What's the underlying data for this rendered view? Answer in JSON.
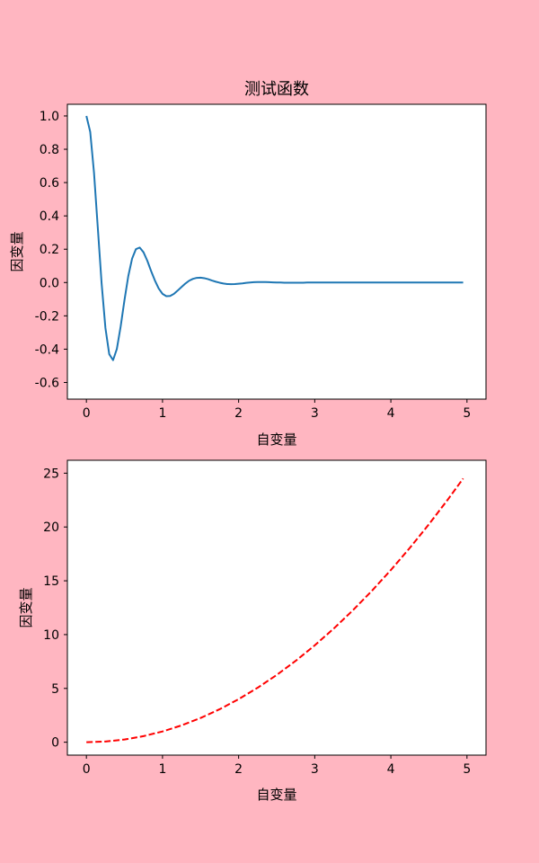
{
  "figure": {
    "background": "#ffb6c1"
  },
  "chart_data": [
    {
      "type": "line",
      "title": "测试函数",
      "xlabel": "自变量",
      "ylabel": "因变量",
      "xlim": [
        -0.25,
        5.25
      ],
      "ylim": [
        -0.7,
        1.07
      ],
      "xticks": [
        0,
        1,
        2,
        3,
        4,
        5
      ],
      "xtick_labels": [
        "0",
        "1",
        "2",
        "3",
        "4",
        "5"
      ],
      "yticks": [
        -0.6,
        -0.4,
        -0.2,
        0.0,
        0.2,
        0.4,
        0.6,
        0.8,
        1.0
      ],
      "ytick_labels": [
        "-0.6",
        "-0.4",
        "-0.2",
        "0.0",
        "0.2",
        "0.4",
        "0.6",
        "0.8",
        "1.0"
      ],
      "grid": false,
      "series": [
        {
          "color": "#1f77b4",
          "line_style": "solid",
          "x": [
            0.0,
            0.05,
            0.1,
            0.15,
            0.2,
            0.25,
            0.3,
            0.35,
            0.4,
            0.45,
            0.5,
            0.55,
            0.6,
            0.65,
            0.7,
            0.75,
            0.8,
            0.85,
            0.9,
            0.95,
            1.0,
            1.05,
            1.1,
            1.15,
            1.2,
            1.25,
            1.3,
            1.35,
            1.4,
            1.45,
            1.5,
            1.55,
            1.6,
            1.65,
            1.7,
            1.75,
            1.8,
            1.85,
            1.9,
            1.95,
            2.0,
            2.05,
            2.1,
            2.15,
            2.2,
            2.25,
            2.3,
            2.35,
            2.4,
            2.45,
            2.5,
            2.55,
            2.6,
            2.65,
            2.7,
            2.75,
            2.8,
            2.85,
            2.9,
            2.95,
            3.0,
            3.05,
            3.1,
            3.15,
            3.2,
            3.25,
            3.3,
            3.35,
            3.4,
            3.45,
            3.5,
            3.55,
            3.6,
            3.65,
            3.7,
            3.75,
            3.8,
            3.85,
            3.9,
            3.95,
            4.0,
            4.05,
            4.1,
            4.15,
            4.2,
            4.25,
            4.3,
            4.35,
            4.4,
            4.45,
            4.5,
            4.55,
            4.6,
            4.65,
            4.7,
            4.75,
            4.8,
            4.85,
            4.9,
            4.95
          ],
          "y": [
            1.0,
            0.905,
            0.659,
            0.327,
            -0.006,
            -0.273,
            -0.43,
            -0.466,
            -0.399,
            -0.264,
            -0.106,
            0.038,
            0.143,
            0.2,
            0.21,
            0.182,
            0.131,
            0.069,
            0.012,
            -0.036,
            -0.068,
            -0.082,
            -0.081,
            -0.068,
            -0.048,
            -0.027,
            -0.006,
            0.011,
            0.022,
            0.028,
            0.029,
            0.026,
            0.02,
            0.012,
            0.005,
            -0.001,
            -0.006,
            -0.009,
            -0.01,
            -0.009,
            -0.007,
            -0.005,
            -0.002,
            0.0,
            0.002,
            0.003,
            0.003,
            0.003,
            0.002,
            0.001,
            0.0,
            0.0,
            -0.001,
            -0.001,
            -0.001,
            -0.001,
            -0.001,
            -0.001,
            0.0,
            0.0,
            0.0,
            0.0,
            0.0,
            0.0,
            0.0,
            0.0,
            0.0,
            0.0,
            0.0,
            0.0,
            0.0,
            0.0,
            0.0,
            0.0,
            0.0,
            0.0,
            0.0,
            0.0,
            0.0,
            0.0,
            0.0,
            0.0,
            0.0,
            0.0,
            0.0,
            0.0,
            0.0,
            0.0,
            0.0,
            0.0,
            0.0,
            0.0,
            0.0,
            0.0,
            0.0,
            0.0,
            0.0,
            0.0,
            0.0,
            0.0
          ]
        }
      ]
    },
    {
      "type": "line",
      "xlabel": "自变量",
      "ylabel": "因变量",
      "xlim": [
        -0.25,
        5.25
      ],
      "ylim": [
        -1.2,
        26.2
      ],
      "xticks": [
        0,
        1,
        2,
        3,
        4,
        5
      ],
      "xtick_labels": [
        "0",
        "1",
        "2",
        "3",
        "4",
        "5"
      ],
      "yticks": [
        0,
        5,
        10,
        15,
        20,
        25
      ],
      "ytick_labels": [
        "0",
        "5",
        "10",
        "15",
        "20",
        "25"
      ],
      "grid": false,
      "series": [
        {
          "color": "#ff0000",
          "line_style": "dashed",
          "x": [
            0.0,
            0.25,
            0.5,
            0.75,
            1.0,
            1.25,
            1.5,
            1.75,
            2.0,
            2.25,
            2.5,
            2.75,
            3.0,
            3.25,
            3.5,
            3.75,
            4.0,
            4.25,
            4.5,
            4.75,
            4.95
          ],
          "y": [
            0.0,
            0.0625,
            0.25,
            0.5625,
            1.0,
            1.5625,
            2.25,
            3.0625,
            4.0,
            5.0625,
            6.25,
            7.5625,
            9.0,
            10.5625,
            12.25,
            14.0625,
            16.0,
            18.0625,
            20.25,
            22.5625,
            24.5025
          ]
        }
      ]
    }
  ]
}
